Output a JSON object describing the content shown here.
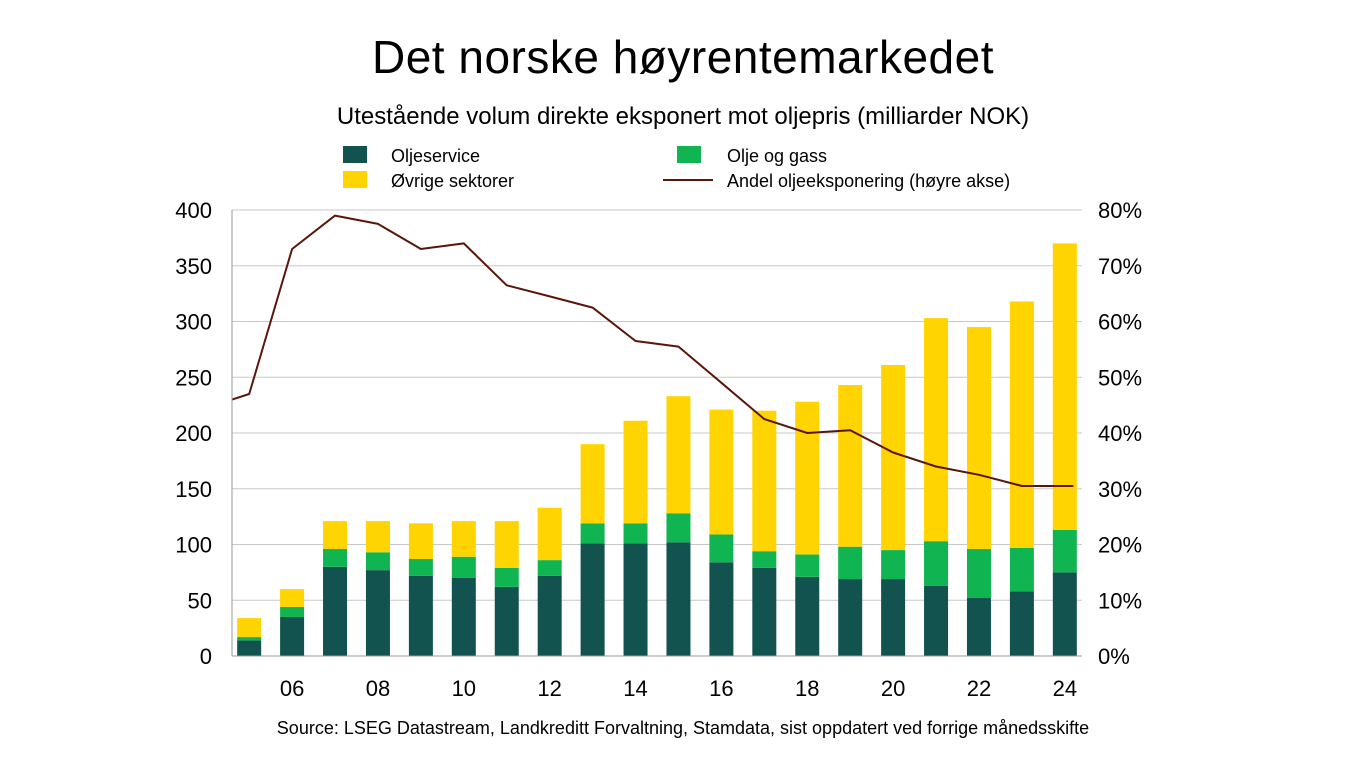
{
  "header": {
    "title": "Det norske høyrentemarkedet",
    "subtitle": "Utestående volum direkte eksponert mot oljepris (milliarder NOK)"
  },
  "footer": {
    "source": "Source: LSEG Datastream, Landkreditt Forvaltning, Stamdata, sist oppdatert ved forrige månedsskifte"
  },
  "colors": {
    "oljeservice": "#13534f",
    "olje_og_gass": "#10b552",
    "ovrige": "#ffd400",
    "andel_line": "#5a1608",
    "grid": "#c8c8c8",
    "axis": "#999999"
  },
  "chart_data": {
    "type": "bar",
    "stacked": true,
    "categories": [
      "05",
      "06",
      "07",
      "08",
      "09",
      "10",
      "11",
      "12",
      "13",
      "14",
      "15",
      "16",
      "17",
      "18",
      "19",
      "20",
      "21",
      "22",
      "23",
      "24"
    ],
    "x_tick_labels": [
      "06",
      "08",
      "10",
      "12",
      "14",
      "16",
      "18",
      "20",
      "22",
      "24"
    ],
    "series": [
      {
        "key": "oljeservice",
        "name": "Oljeservice",
        "axis": "left",
        "values": [
          14,
          35,
          80,
          77,
          72,
          70,
          62,
          72,
          101,
          101,
          102,
          84,
          79,
          71,
          69,
          69,
          63,
          52,
          58,
          75
        ]
      },
      {
        "key": "olje_og_gass",
        "name": "Olje og gass",
        "axis": "left",
        "values": [
          3,
          9,
          16,
          16,
          15,
          19,
          17,
          14,
          18,
          18,
          26,
          25,
          15,
          20,
          29,
          26,
          40,
          44,
          39,
          38
        ]
      },
      {
        "key": "ovrige",
        "name": "Øvrige sektorer",
        "axis": "left",
        "values": [
          17,
          16,
          25,
          28,
          32,
          32,
          42,
          47,
          71,
          92,
          105,
          112,
          126,
          137,
          145,
          166,
          200,
          199,
          221,
          257
        ]
      }
    ],
    "line_series": {
      "key": "andel_line",
      "name": "Andel oljeeksponering (høyre akse)",
      "axis": "right",
      "x": [
        4.6,
        5.0,
        6.0,
        7.0,
        8.0,
        9.0,
        10.0,
        11.0,
        12.0,
        13.0,
        14.0,
        15.0,
        16.0,
        17.0,
        18.0,
        19.0,
        20.0,
        21.0,
        22.0,
        23.0,
        24.2
      ],
      "values": [
        46,
        47,
        73,
        79,
        77.5,
        73,
        74,
        66.5,
        64.5,
        62.5,
        56.5,
        55.5,
        49,
        42.5,
        40,
        40.5,
        36.5,
        34,
        32.5,
        30.5,
        30.5
      ]
    },
    "ylim": [
      0,
      400
    ],
    "yticks": [
      0,
      50,
      100,
      150,
      200,
      250,
      300,
      350,
      400
    ],
    "y2lim": [
      0,
      80
    ],
    "y2ticks": [
      "0%",
      "10%",
      "20%",
      "30%",
      "40%",
      "50%",
      "60%",
      "70%",
      "80%"
    ],
    "grid": true,
    "legend": "top",
    "title": "Det norske høyrentemarkedet",
    "subtitle": "Utestående volum direkte eksponert mot oljepris (milliarder NOK)"
  }
}
